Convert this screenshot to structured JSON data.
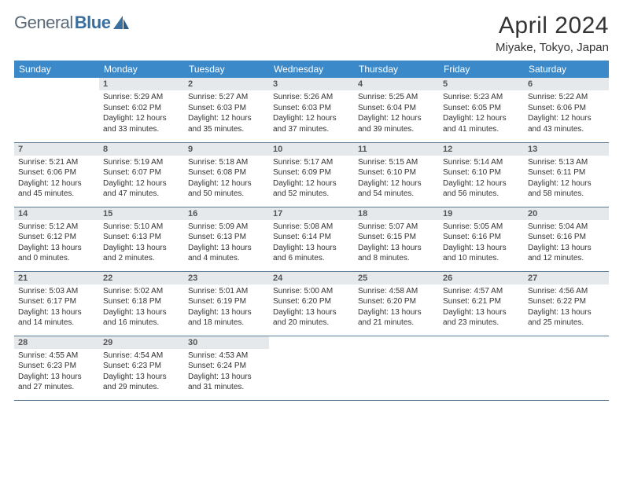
{
  "logo": {
    "text1": "General",
    "text2": "Blue"
  },
  "title": "April 2024",
  "location": "Miyake, Tokyo, Japan",
  "colors": {
    "header_bg": "#3b89c9",
    "daynum_bg": "#e6e9ec",
    "row_border": "#5a7a95",
    "logo_accent": "#3b6f9e"
  },
  "weekdays": [
    "Sunday",
    "Monday",
    "Tuesday",
    "Wednesday",
    "Thursday",
    "Friday",
    "Saturday"
  ],
  "weeks": [
    [
      {
        "n": "",
        "sr": "",
        "ss": "",
        "dl": ""
      },
      {
        "n": "1",
        "sr": "Sunrise: 5:29 AM",
        "ss": "Sunset: 6:02 PM",
        "dl": "Daylight: 12 hours and 33 minutes."
      },
      {
        "n": "2",
        "sr": "Sunrise: 5:27 AM",
        "ss": "Sunset: 6:03 PM",
        "dl": "Daylight: 12 hours and 35 minutes."
      },
      {
        "n": "3",
        "sr": "Sunrise: 5:26 AM",
        "ss": "Sunset: 6:03 PM",
        "dl": "Daylight: 12 hours and 37 minutes."
      },
      {
        "n": "4",
        "sr": "Sunrise: 5:25 AM",
        "ss": "Sunset: 6:04 PM",
        "dl": "Daylight: 12 hours and 39 minutes."
      },
      {
        "n": "5",
        "sr": "Sunrise: 5:23 AM",
        "ss": "Sunset: 6:05 PM",
        "dl": "Daylight: 12 hours and 41 minutes."
      },
      {
        "n": "6",
        "sr": "Sunrise: 5:22 AM",
        "ss": "Sunset: 6:06 PM",
        "dl": "Daylight: 12 hours and 43 minutes."
      }
    ],
    [
      {
        "n": "7",
        "sr": "Sunrise: 5:21 AM",
        "ss": "Sunset: 6:06 PM",
        "dl": "Daylight: 12 hours and 45 minutes."
      },
      {
        "n": "8",
        "sr": "Sunrise: 5:19 AM",
        "ss": "Sunset: 6:07 PM",
        "dl": "Daylight: 12 hours and 47 minutes."
      },
      {
        "n": "9",
        "sr": "Sunrise: 5:18 AM",
        "ss": "Sunset: 6:08 PM",
        "dl": "Daylight: 12 hours and 50 minutes."
      },
      {
        "n": "10",
        "sr": "Sunrise: 5:17 AM",
        "ss": "Sunset: 6:09 PM",
        "dl": "Daylight: 12 hours and 52 minutes."
      },
      {
        "n": "11",
        "sr": "Sunrise: 5:15 AM",
        "ss": "Sunset: 6:10 PM",
        "dl": "Daylight: 12 hours and 54 minutes."
      },
      {
        "n": "12",
        "sr": "Sunrise: 5:14 AM",
        "ss": "Sunset: 6:10 PM",
        "dl": "Daylight: 12 hours and 56 minutes."
      },
      {
        "n": "13",
        "sr": "Sunrise: 5:13 AM",
        "ss": "Sunset: 6:11 PM",
        "dl": "Daylight: 12 hours and 58 minutes."
      }
    ],
    [
      {
        "n": "14",
        "sr": "Sunrise: 5:12 AM",
        "ss": "Sunset: 6:12 PM",
        "dl": "Daylight: 13 hours and 0 minutes."
      },
      {
        "n": "15",
        "sr": "Sunrise: 5:10 AM",
        "ss": "Sunset: 6:13 PM",
        "dl": "Daylight: 13 hours and 2 minutes."
      },
      {
        "n": "16",
        "sr": "Sunrise: 5:09 AM",
        "ss": "Sunset: 6:13 PM",
        "dl": "Daylight: 13 hours and 4 minutes."
      },
      {
        "n": "17",
        "sr": "Sunrise: 5:08 AM",
        "ss": "Sunset: 6:14 PM",
        "dl": "Daylight: 13 hours and 6 minutes."
      },
      {
        "n": "18",
        "sr": "Sunrise: 5:07 AM",
        "ss": "Sunset: 6:15 PM",
        "dl": "Daylight: 13 hours and 8 minutes."
      },
      {
        "n": "19",
        "sr": "Sunrise: 5:05 AM",
        "ss": "Sunset: 6:16 PM",
        "dl": "Daylight: 13 hours and 10 minutes."
      },
      {
        "n": "20",
        "sr": "Sunrise: 5:04 AM",
        "ss": "Sunset: 6:16 PM",
        "dl": "Daylight: 13 hours and 12 minutes."
      }
    ],
    [
      {
        "n": "21",
        "sr": "Sunrise: 5:03 AM",
        "ss": "Sunset: 6:17 PM",
        "dl": "Daylight: 13 hours and 14 minutes."
      },
      {
        "n": "22",
        "sr": "Sunrise: 5:02 AM",
        "ss": "Sunset: 6:18 PM",
        "dl": "Daylight: 13 hours and 16 minutes."
      },
      {
        "n": "23",
        "sr": "Sunrise: 5:01 AM",
        "ss": "Sunset: 6:19 PM",
        "dl": "Daylight: 13 hours and 18 minutes."
      },
      {
        "n": "24",
        "sr": "Sunrise: 5:00 AM",
        "ss": "Sunset: 6:20 PM",
        "dl": "Daylight: 13 hours and 20 minutes."
      },
      {
        "n": "25",
        "sr": "Sunrise: 4:58 AM",
        "ss": "Sunset: 6:20 PM",
        "dl": "Daylight: 13 hours and 21 minutes."
      },
      {
        "n": "26",
        "sr": "Sunrise: 4:57 AM",
        "ss": "Sunset: 6:21 PM",
        "dl": "Daylight: 13 hours and 23 minutes."
      },
      {
        "n": "27",
        "sr": "Sunrise: 4:56 AM",
        "ss": "Sunset: 6:22 PM",
        "dl": "Daylight: 13 hours and 25 minutes."
      }
    ],
    [
      {
        "n": "28",
        "sr": "Sunrise: 4:55 AM",
        "ss": "Sunset: 6:23 PM",
        "dl": "Daylight: 13 hours and 27 minutes."
      },
      {
        "n": "29",
        "sr": "Sunrise: 4:54 AM",
        "ss": "Sunset: 6:23 PM",
        "dl": "Daylight: 13 hours and 29 minutes."
      },
      {
        "n": "30",
        "sr": "Sunrise: 4:53 AM",
        "ss": "Sunset: 6:24 PM",
        "dl": "Daylight: 13 hours and 31 minutes."
      },
      {
        "n": "",
        "sr": "",
        "ss": "",
        "dl": ""
      },
      {
        "n": "",
        "sr": "",
        "ss": "",
        "dl": ""
      },
      {
        "n": "",
        "sr": "",
        "ss": "",
        "dl": ""
      },
      {
        "n": "",
        "sr": "",
        "ss": "",
        "dl": ""
      }
    ]
  ]
}
